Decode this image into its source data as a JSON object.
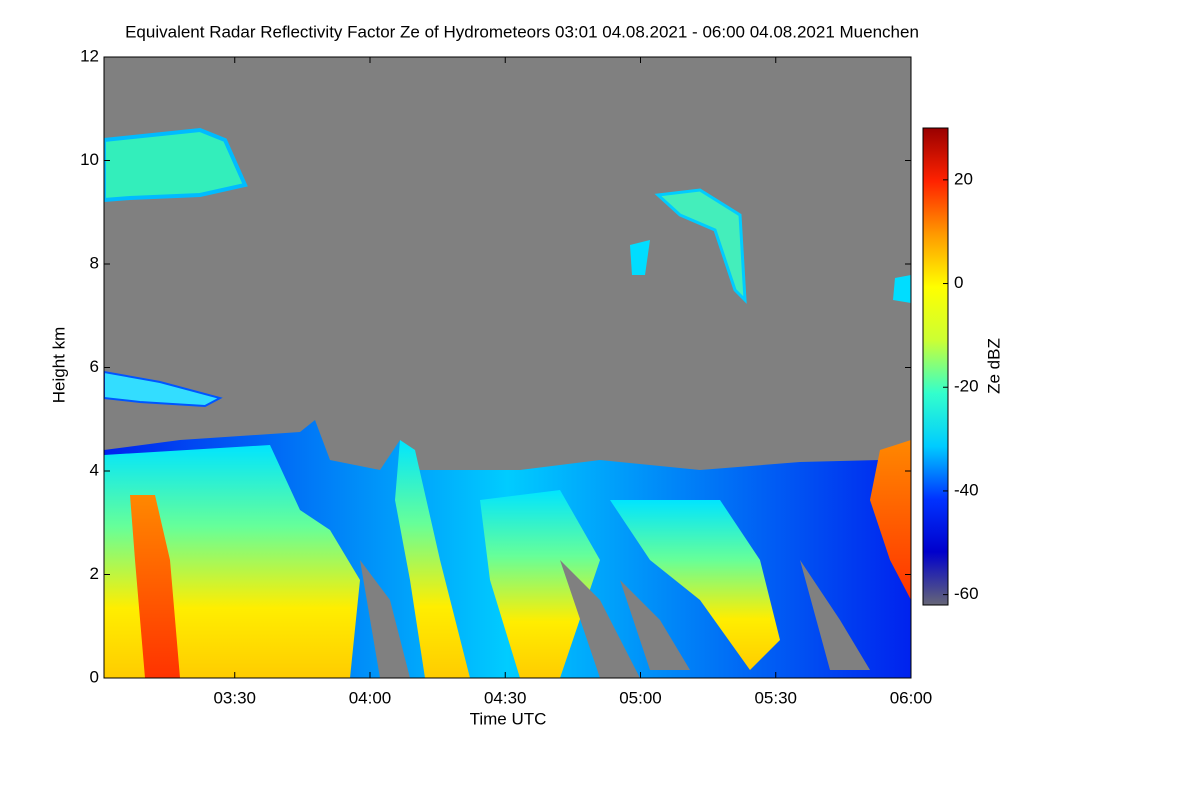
{
  "chart_data": {
    "type": "heatmap",
    "title": "Equivalent Radar Reflectivity Factor Ze of Hydrometeors   03:01 04.08.2021 - 06:00 04.08.2021 Muenchen",
    "x_label": "Time UTC",
    "y_label": "Height km",
    "xlim": [
      "03:01",
      "06:00"
    ],
    "xticks": [
      "03:30",
      "04:00",
      "04:30",
      "05:00",
      "05:30",
      "06:00"
    ],
    "ylim": [
      0,
      12
    ],
    "yticks": [
      0,
      2,
      4,
      6,
      8,
      10,
      12
    ],
    "colorbar": {
      "label": "Ze dBZ",
      "clim": [
        -62,
        30
      ],
      "ticks": [
        -60,
        -40,
        -20,
        0,
        20
      ],
      "colormap": [
        "#666677",
        "#0000cc",
        "#0033ff",
        "#00ccff",
        "#33ffcc",
        "#ccff33",
        "#ffff00",
        "#ff9900",
        "#ff2200",
        "#990000"
      ]
    },
    "background": "#808080"
  }
}
